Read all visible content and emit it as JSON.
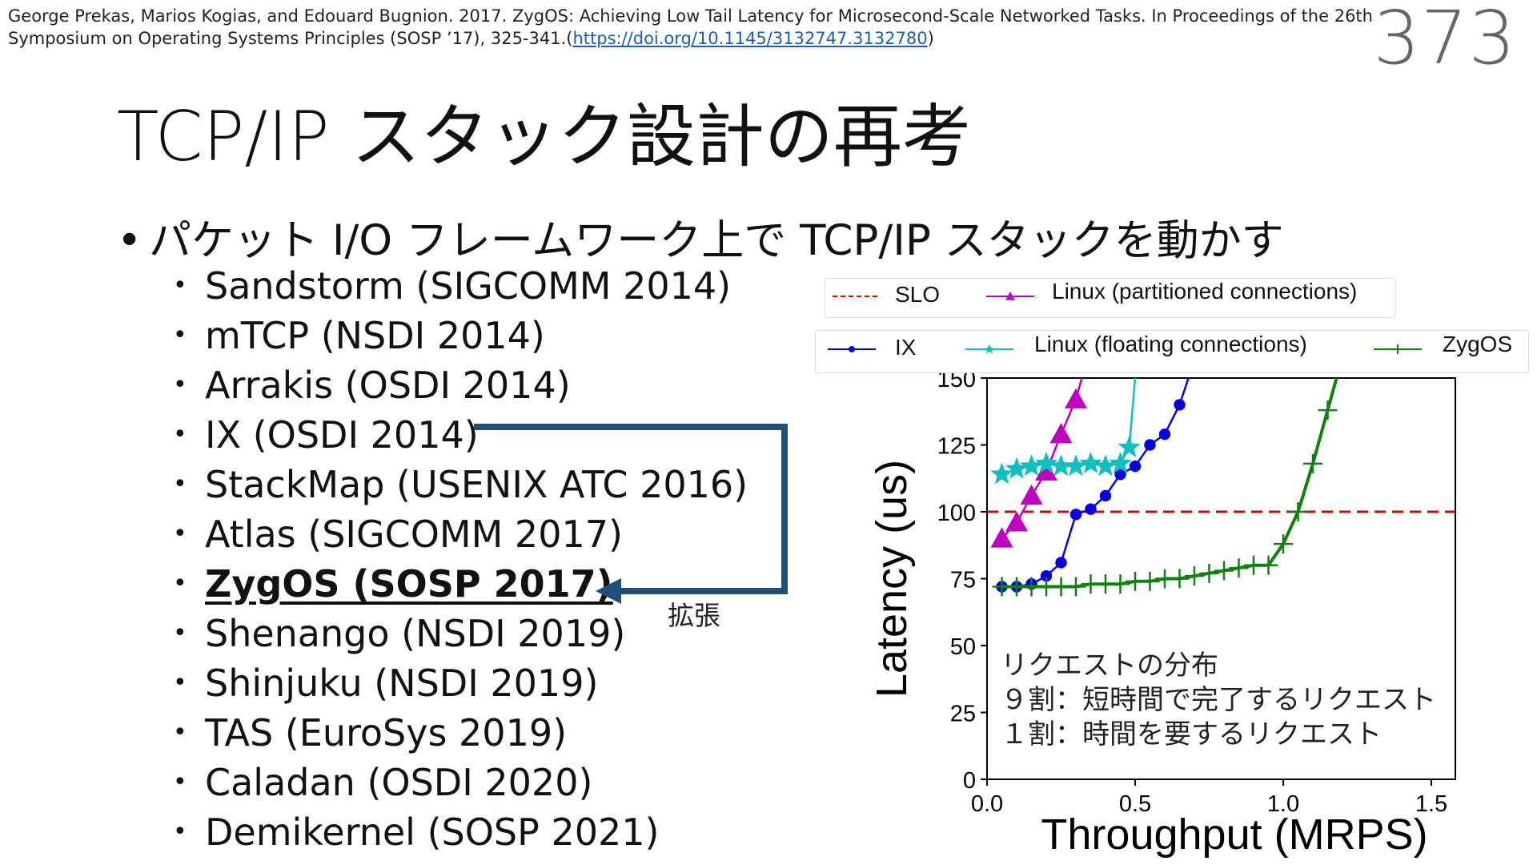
{
  "citation": {
    "line1": "George Prekas, Marios Kogias, and Edouard Bugnion. 2017. ZygOS: Achieving Low Tail Latency for Microsecond-Scale Networked Tasks. In Proceedings of the 26th",
    "line2_prefix": "Symposium on Operating Systems Principles (SOSP ’17), 325-341.(",
    "link": "https://doi.org/10.1145/3132747.3132780",
    "line2_suffix": ")"
  },
  "page_number": "373",
  "title": "TCP/IP スタック設計の再考",
  "main_bullet": "パケット I/O フレームワーク上で TCP/IP スタックを動かす",
  "sub_items": [
    "Sandstorm (SIGCOMM 2014)",
    "mTCP (NSDI 2014)",
    "Arrakis (OSDI 2014)",
    "IX (OSDI 2014)",
    "StackMap (USENIX ATC 2016)",
    "Atlas (SIGCOMM 2017)",
    "ZygOS (SOSP 2017)",
    "Shenango (NSDI 2019)",
    "Shinjuku (NSDI 2019)",
    "TAS (EuroSys 2019)",
    "Caladan (OSDI 2020)",
    "Demikernel (SOSP 2021)"
  ],
  "highlighted_item": 6,
  "arrow_label": "拡張",
  "annotation": {
    "line1": "リクエストの分布",
    "line2": "９割：短時間で完了するリクエスト",
    "line3": "１割：時間を要するリクエスト"
  },
  "colors": {
    "link": "#1a5fb4",
    "arrow": "#1f4e79"
  },
  "chart_data": {
    "type": "line",
    "xlabel": "Throughput (MRPS)",
    "ylabel": "Latency (us)",
    "xlim": [
      0,
      1.6
    ],
    "ylim": [
      0,
      150
    ],
    "xticks": [
      "0.0",
      "0.5",
      "1.0",
      "1.5"
    ],
    "yticks": [
      "0",
      "25",
      "50",
      "75",
      "100",
      "125",
      "150"
    ],
    "grid": false,
    "legend_position": "top",
    "slo": {
      "name": "SLO",
      "value": 100,
      "color": "#e00000"
    },
    "series": [
      {
        "name": "Linux (partitioned connections)",
        "color": "#c000c0",
        "marker": "triangle",
        "x": [
          0.05,
          0.1,
          0.15,
          0.2,
          0.25,
          0.3,
          0.32
        ],
        "y": [
          90,
          96,
          106,
          115,
          129,
          142,
          150
        ]
      },
      {
        "name": "IX",
        "color": "#0000e0",
        "marker": "circle",
        "x": [
          0.05,
          0.1,
          0.15,
          0.2,
          0.25,
          0.3,
          0.35,
          0.4,
          0.45,
          0.5,
          0.55,
          0.6,
          0.65,
          0.68
        ],
        "y": [
          72,
          72,
          73,
          76,
          81,
          99,
          101,
          106,
          114,
          117,
          125,
          129,
          140,
          150
        ]
      },
      {
        "name": "Linux (floating connections)",
        "color": "#10c0c0",
        "marker": "star",
        "x": [
          0.05,
          0.1,
          0.15,
          0.2,
          0.25,
          0.3,
          0.35,
          0.4,
          0.45,
          0.48,
          0.5
        ],
        "y": [
          114,
          116,
          117,
          118,
          117,
          117,
          118,
          117,
          118,
          124,
          150
        ]
      },
      {
        "name": "ZygOS",
        "color": "#108010",
        "marker": "plus",
        "x": [
          0.05,
          0.1,
          0.15,
          0.2,
          0.25,
          0.3,
          0.35,
          0.4,
          0.45,
          0.5,
          0.55,
          0.6,
          0.65,
          0.7,
          0.75,
          0.8,
          0.85,
          0.9,
          0.95,
          1.0,
          1.05,
          1.1,
          1.15,
          1.18
        ],
        "y": [
          72,
          72,
          72,
          72,
          72,
          72,
          73,
          73,
          73,
          74,
          74,
          75,
          75,
          76,
          77,
          78,
          79,
          80,
          80,
          88,
          100,
          118,
          138,
          150
        ]
      }
    ]
  }
}
